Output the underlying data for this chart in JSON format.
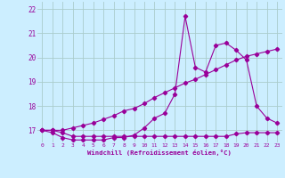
{
  "xlabel": "Windchill (Refroidissement éolien,°C)",
  "bg_color": "#cceeff",
  "grid_color": "#aacccc",
  "line_color": "#990099",
  "x": [
    0,
    1,
    2,
    3,
    4,
    5,
    6,
    7,
    8,
    9,
    10,
    11,
    12,
    13,
    14,
    15,
    16,
    17,
    18,
    19,
    20,
    21,
    22,
    23
  ],
  "y_line1": [
    17.0,
    16.9,
    16.7,
    16.6,
    16.6,
    16.6,
    16.6,
    16.7,
    16.7,
    16.8,
    17.1,
    17.5,
    17.7,
    18.5,
    21.7,
    19.6,
    19.4,
    20.5,
    20.6,
    20.3,
    19.9,
    18.0,
    17.5,
    17.3
  ],
  "y_line2": [
    17.0,
    17.0,
    17.0,
    17.1,
    17.2,
    17.3,
    17.45,
    17.6,
    17.8,
    17.9,
    18.1,
    18.35,
    18.55,
    18.75,
    18.95,
    19.1,
    19.3,
    19.5,
    19.7,
    19.9,
    20.05,
    20.15,
    20.25,
    20.35
  ],
  "y_line3": [
    17.0,
    17.0,
    16.9,
    16.75,
    16.75,
    16.75,
    16.75,
    16.75,
    16.75,
    16.75,
    16.75,
    16.75,
    16.75,
    16.75,
    16.75,
    16.75,
    16.75,
    16.75,
    16.75,
    16.85,
    16.9,
    16.9,
    16.9,
    16.9
  ],
  "ylim": [
    16.5,
    22.3
  ],
  "yticks": [
    17,
    18,
    19,
    20,
    21,
    22
  ],
  "xticks": [
    0,
    1,
    2,
    3,
    4,
    5,
    6,
    7,
    8,
    9,
    10,
    11,
    12,
    13,
    14,
    15,
    16,
    17,
    18,
    19,
    20,
    21,
    22,
    23
  ]
}
